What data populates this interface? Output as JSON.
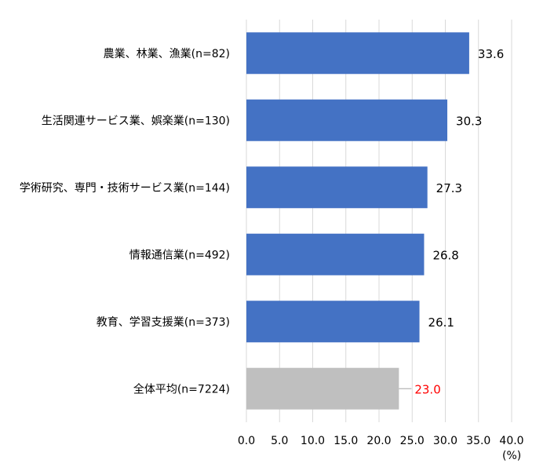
{
  "chart_data": {
    "type": "bar",
    "orientation": "horizontal",
    "categories": [
      "農業、林業、漁業(n=82)",
      "生活関連サービス業、娯楽業(n=130)",
      "学術研究、専門・技術サービス業(n=144)",
      "情報通信業(n=492)",
      "教育、学習支援業(n=373)",
      "全体平均(n=7224)"
    ],
    "values": [
      33.6,
      30.3,
      27.3,
      26.8,
      26.1,
      23.0
    ],
    "value_labels": [
      "33.6",
      "30.3",
      "27.3",
      "26.8",
      "26.1",
      "23.0"
    ],
    "xlim": [
      0,
      40
    ],
    "x_ticks": [
      "0.0",
      "5.0",
      "10.0",
      "15.0",
      "20.0",
      "25.0",
      "30.0",
      "35.0",
      "40.0"
    ],
    "unit": "(%)",
    "grid": true,
    "colors": {
      "bar": "#4472c4",
      "average_bar": "#bfbfbf",
      "average_label": "#ff0000",
      "label": "#000000",
      "grid": "#d9d9d9"
    }
  }
}
